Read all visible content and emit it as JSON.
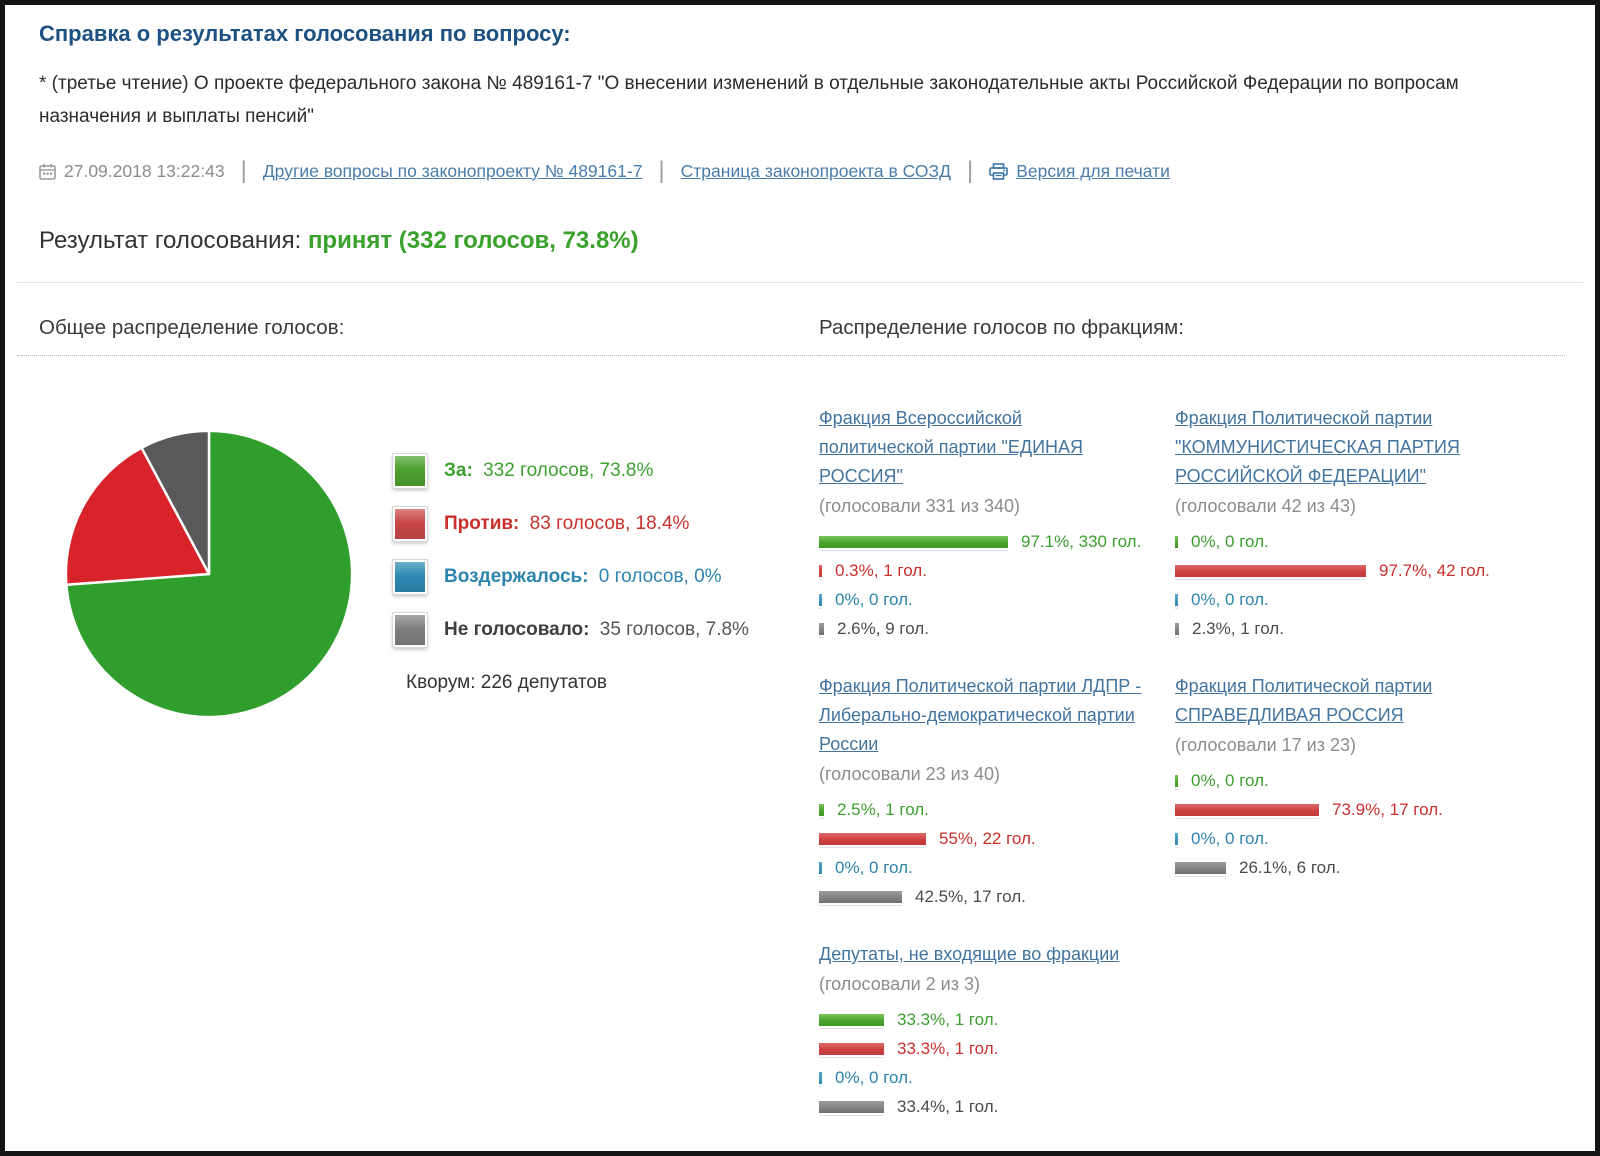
{
  "header": {
    "title": "Справка о результатах голосования по вопросу:",
    "question": "* (третье чтение) О проекте федерального закона № 489161-7 \"О внесении изменений в отдельные законодательные акты Российской Федерации по вопросам назначения и выплаты пенсий\"",
    "datetime": "27.09.2018 13:22:43",
    "links": {
      "other_questions": "Другие вопросы по законопроекту № 489161-7",
      "sozd_page": "Страница законопроекта в СОЗД",
      "print": "Версия для печати"
    },
    "result_label": "Результат голосования:",
    "result_value": "принят (332 голосов, 73.8%)"
  },
  "overall": {
    "heading": "Общее распределение голосов:",
    "legend": [
      {
        "kind": "for",
        "icon": "green-swatch-icon",
        "label": "За:",
        "value": "332 голосов, 73.8%",
        "swatch": "#4ea12f",
        "label_color": "#3ca02e",
        "value_color": "#3ca02e"
      },
      {
        "kind": "against",
        "icon": "red-swatch-icon",
        "label": "Против:",
        "value": "83 голосов, 18.4%",
        "swatch": "#c94848",
        "label_color": "#c9302c",
        "value_color": "#c9302c"
      },
      {
        "kind": "abstain",
        "icon": "blue-swatch-icon",
        "label": "Воздержалось:",
        "value": "0 голосов, 0%",
        "swatch": "#2d8ab2",
        "label_color": "#2d84ad",
        "value_color": "#2d84ad"
      },
      {
        "kind": "novote",
        "icon": "gray-swatch-icon",
        "label": "Не голосовало:",
        "value": "35 голосов, 7.8%",
        "swatch": "#7f7f7f",
        "label_color": "#3f3f3f",
        "value_color": "#555555"
      }
    ],
    "quorum": "Кворум: 226 депутатов"
  },
  "factions": {
    "heading": "Распределение голосов по фракциям:",
    "items": [
      {
        "name": "Фракция Всероссийской\nполитической партии \"ЕДИНАЯ\nРОССИЯ\"",
        "turnout": "(голосовали 331 из 340)",
        "bars": [
          {
            "kind": "for",
            "pct": 97.1,
            "votes": 330,
            "label": "97.1%, 330 гол."
          },
          {
            "kind": "against",
            "pct": 0.3,
            "votes": 1,
            "label": "0.3%, 1 гол."
          },
          {
            "kind": "abstain",
            "pct": 0,
            "votes": 0,
            "label": "0%, 0 гол."
          },
          {
            "kind": "novote",
            "pct": 2.6,
            "votes": 9,
            "label": "2.6%, 9 гол."
          }
        ]
      },
      {
        "name": "Фракция Политической партии\n\"КОММУНИСТИЧЕСКАЯ ПАРТИЯ\nРОССИЙСКОЙ ФЕДЕРАЦИИ\"",
        "turnout": "(голосовали 42 из 43)",
        "bars": [
          {
            "kind": "for",
            "pct": 0,
            "votes": 0,
            "label": "0%, 0 гол."
          },
          {
            "kind": "against",
            "pct": 97.7,
            "votes": 42,
            "label": "97.7%, 42 гол."
          },
          {
            "kind": "abstain",
            "pct": 0,
            "votes": 0,
            "label": "0%, 0 гол."
          },
          {
            "kind": "novote",
            "pct": 2.3,
            "votes": 1,
            "label": "2.3%, 1 гол."
          }
        ]
      },
      {
        "name": "Фракция Политической партии ЛДПР -\nЛиберально-демократической партии\nРоссии",
        "turnout": "(голосовали 23 из 40)",
        "bars": [
          {
            "kind": "for",
            "pct": 2.5,
            "votes": 1,
            "label": "2.5%, 1 гол."
          },
          {
            "kind": "against",
            "pct": 55,
            "votes": 22,
            "label": "55%, 22 гол."
          },
          {
            "kind": "abstain",
            "pct": 0,
            "votes": 0,
            "label": "0%, 0 гол."
          },
          {
            "kind": "novote",
            "pct": 42.5,
            "votes": 17,
            "label": "42.5%, 17 гол."
          }
        ]
      },
      {
        "name": "Фракция Политической партии\nСПРАВЕДЛИВАЯ РОССИЯ",
        "turnout": "(голосовали 17 из 23)",
        "bars": [
          {
            "kind": "for",
            "pct": 0,
            "votes": 0,
            "label": "0%, 0 гол."
          },
          {
            "kind": "against",
            "pct": 73.9,
            "votes": 17,
            "label": "73.9%, 17 гол."
          },
          {
            "kind": "abstain",
            "pct": 0,
            "votes": 0,
            "label": "0%, 0 гол."
          },
          {
            "kind": "novote",
            "pct": 26.1,
            "votes": 6,
            "label": "26.1%, 6 гол."
          }
        ]
      },
      {
        "name": "Депутаты, не входящие во фракции",
        "turnout": "(голосовали 2 из 3)",
        "bars": [
          {
            "kind": "for",
            "pct": 33.3,
            "votes": 1,
            "label": "33.3%, 1 гол."
          },
          {
            "kind": "against",
            "pct": 33.3,
            "votes": 1,
            "label": "33.3%, 1 гол."
          },
          {
            "kind": "abstain",
            "pct": 0,
            "votes": 0,
            "label": "0%, 0 гол."
          },
          {
            "kind": "novote",
            "pct": 33.4,
            "votes": 1,
            "label": "33.4%, 1 гол."
          }
        ]
      }
    ]
  },
  "chart_data": [
    {
      "type": "pie",
      "title": "Общее распределение голосов",
      "labels": [
        "За",
        "Против",
        "Воздержалось",
        "Не голосовало"
      ],
      "values": [
        332,
        83,
        0,
        35
      ],
      "pcts": [
        73.8,
        18.4,
        0,
        7.8
      ],
      "colors": [
        "#2f9e2c",
        "#d8232a",
        "#2e8ab5",
        "#59595c"
      ],
      "start_angle": "top",
      "direction": "clockwise",
      "legend_position": "right"
    },
    {
      "type": "bar",
      "title": "Распределение голосов по фракциям",
      "categories": [
        "За",
        "Против",
        "Воздержалось",
        "Не голосовало"
      ],
      "unit": "percent",
      "series": [
        {
          "name": "Фракция \"ЕДИНАЯ РОССИЯ\"",
          "pcts": [
            97.1,
            0.3,
            0,
            2.6
          ],
          "votes": [
            330,
            1,
            0,
            9
          ]
        },
        {
          "name": "Фракция \"КОММУНИСТИЧЕСКАЯ ПАРТИЯ РОССИЙСКОЙ ФЕДЕРАЦИИ\"",
          "pcts": [
            0,
            97.7,
            0,
            2.3
          ],
          "votes": [
            0,
            42,
            0,
            1
          ]
        },
        {
          "name": "Фракция ЛДПР",
          "pcts": [
            2.5,
            55,
            0,
            42.5
          ],
          "votes": [
            1,
            22,
            0,
            17
          ]
        },
        {
          "name": "Фракция СПРАВЕДЛИВАЯ РОССИЯ",
          "pcts": [
            0,
            73.9,
            0,
            26.1
          ],
          "votes": [
            0,
            17,
            0,
            6
          ]
        },
        {
          "name": "Депутаты, не входящие во фракции",
          "pcts": [
            33.3,
            33.3,
            0,
            33.4
          ],
          "votes": [
            1,
            1,
            0,
            1
          ]
        }
      ]
    }
  ]
}
